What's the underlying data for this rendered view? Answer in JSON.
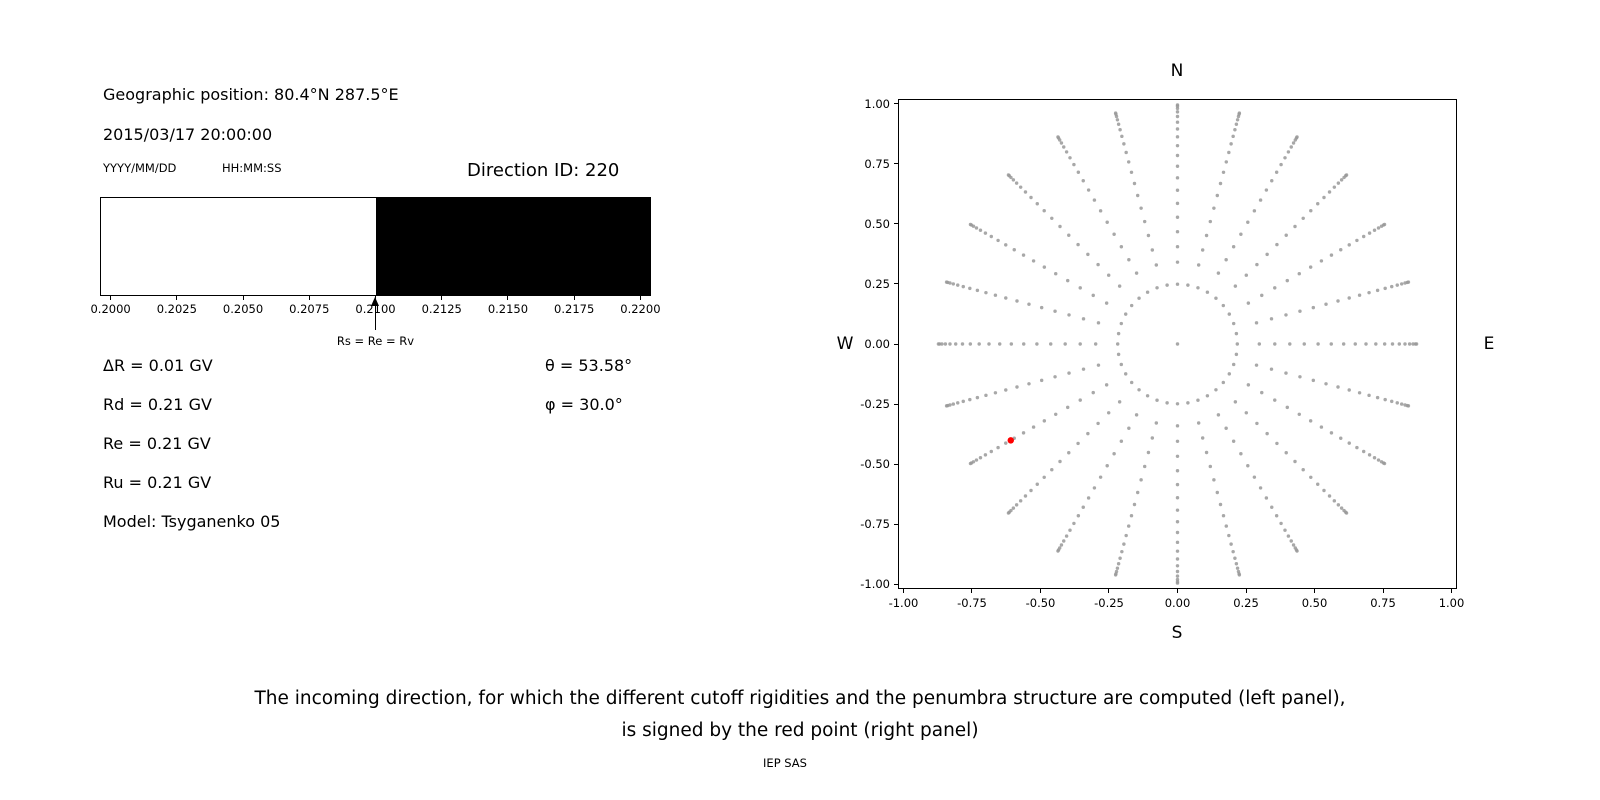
{
  "colors": {
    "background": "#ffffff",
    "text": "#000000",
    "frame": "#000000",
    "penumbra_allowed": "#ffffff",
    "penumbra_forbidden": "#000000",
    "dot_gray": "#999999",
    "red_point": "#ff0000"
  },
  "left_panel": {
    "geo_position": "Geographic position: 80.4°N 287.5°E",
    "datetime": "2015/03/17 20:00:00",
    "date_format_label": "YYYY/MM/DD",
    "time_format_label": "HH:MM:SS",
    "direction_id": "Direction ID: 220",
    "params_left": [
      "ΔR = 0.01 GV",
      "Rd = 0.21 GV",
      "Re = 0.21 GV",
      "Ru = 0.21 GV",
      "Model: Tsyganenko 05"
    ],
    "params_right": [
      "θ = 53.58°",
      "φ = 30.0°"
    ]
  },
  "caption": {
    "line1": "The incoming direction, for which the different cutoff rigidities and the penumbra structure are computed (left panel),",
    "line2": "is signed by the red point (right panel)",
    "credit": "IEP SAS"
  },
  "chart_data": [
    {
      "type": "bar",
      "name": "penumbra-structure",
      "title": "",
      "xlabel": "",
      "ylabel": "",
      "xlim": [
        0.1996,
        0.2204
      ],
      "xticks": [
        "0.2000",
        "0.2025",
        "0.2050",
        "0.2075",
        "0.2100",
        "0.2125",
        "0.2150",
        "0.2175",
        "0.2200"
      ],
      "segments": [
        {
          "from": 0.1996,
          "to": 0.21,
          "color": "#ffffff"
        },
        {
          "from": 0.21,
          "to": 0.2204,
          "color": "#000000"
        }
      ],
      "annotation": {
        "x": 0.21,
        "label": "Rs = Re = Rv"
      }
    },
    {
      "type": "scatter",
      "name": "incoming-directions-sky-map",
      "xlim": [
        -1,
        1
      ],
      "ylim": [
        -1,
        1
      ],
      "xticks": [
        "-1.00",
        "-0.75",
        "-0.50",
        "-0.25",
        "0.00",
        "0.25",
        "0.50",
        "0.75",
        "1.00"
      ],
      "yticks": [
        "1.00",
        "0.75",
        "0.50",
        "0.25",
        "0.00",
        "-0.25",
        "-0.50",
        "-0.75",
        "-1.00"
      ],
      "compass": {
        "top": "N",
        "bottom": "S",
        "left": "W",
        "right": "E"
      },
      "direction_grid": {
        "azimuth_step_deg": 15,
        "zenith_start_deg": 20,
        "zenith_end_deg": 88,
        "zenith_step_deg": 4,
        "radius_equals": "sin(zenith)",
        "inner_ring": {
          "radius": 0.25,
          "count": 36
        },
        "center_point": true,
        "dot_color": "#999999"
      },
      "red_point": {
        "x": -0.697,
        "y": -0.403,
        "color": "#ff0000"
      }
    }
  ]
}
